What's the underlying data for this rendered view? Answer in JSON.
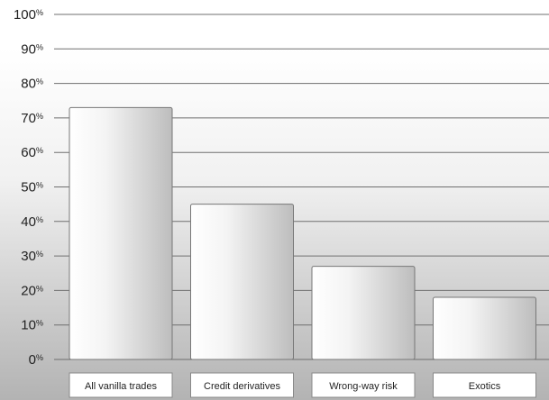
{
  "chart_data": {
    "type": "bar",
    "categories": [
      "All vanilla trades",
      "Credit derivatives",
      "Wrong-way risk",
      "Exotics"
    ],
    "values": [
      73,
      45,
      27,
      18
    ],
    "ylim": [
      0,
      100
    ],
    "yticks": [
      0,
      10,
      20,
      30,
      40,
      50,
      60,
      70,
      80,
      90,
      100
    ],
    "ytick_suffix": "%",
    "grid": true,
    "legend": "none",
    "title": "",
    "xlabel": "",
    "ylabel": ""
  },
  "colors": {
    "grid": "#6f6f6f",
    "bar_stroke": "#777777",
    "bar_light": "#ffffff",
    "bar_dark": "#bdbdbd",
    "label_box_fill": "#ffffff",
    "label_box_stroke": "#888888"
  }
}
